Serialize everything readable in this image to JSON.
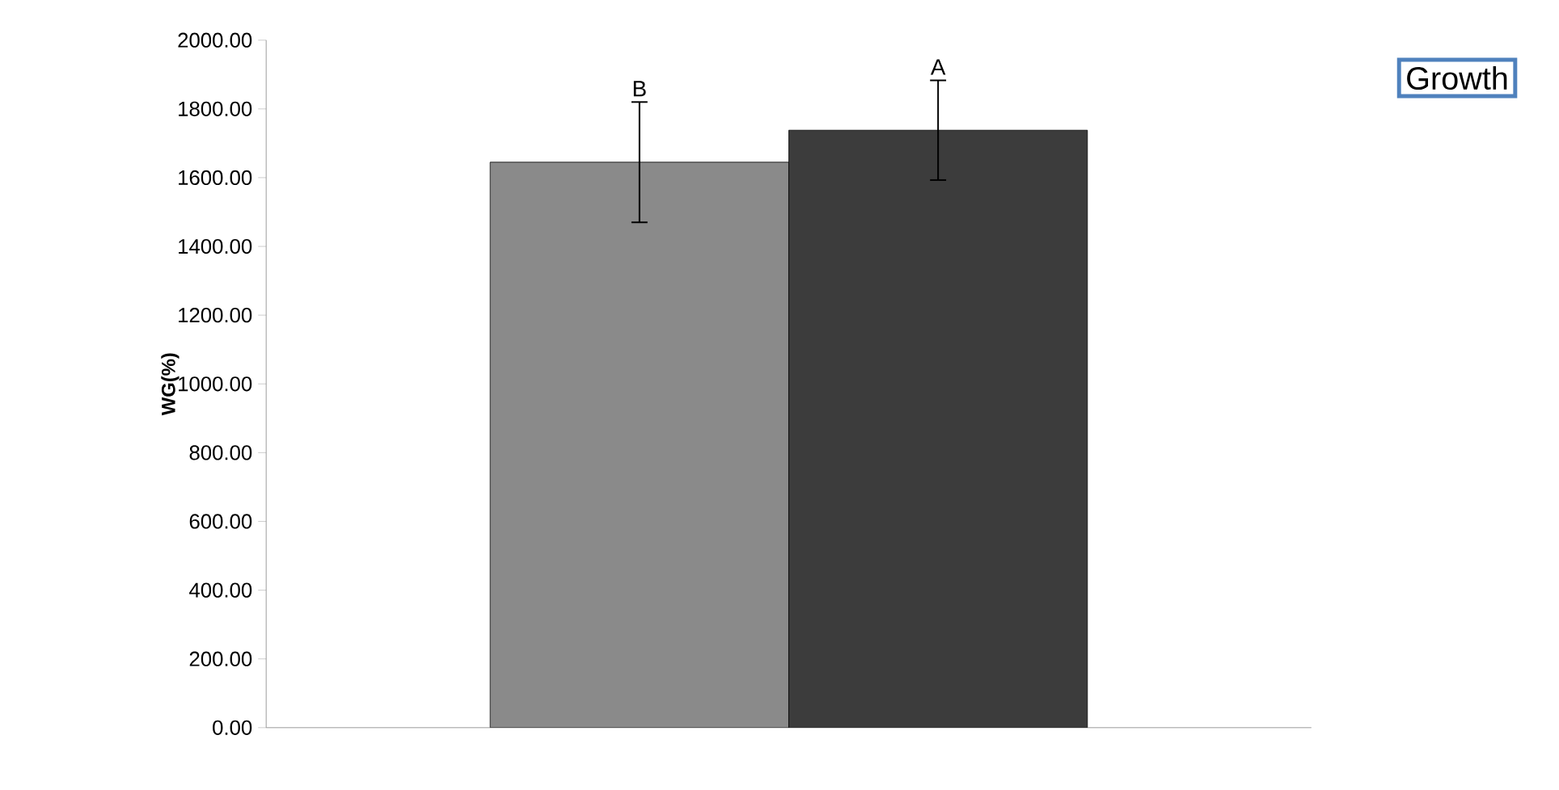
{
  "chart_data": {
    "type": "bar",
    "title": "Growth",
    "ylabel": "WG(%)",
    "categories": [
      null
    ],
    "series": [
      {
        "color": "#8a8a8a",
        "values": [
          1645
        ],
        "errors": [
          175
        ]
      },
      {
        "color": "#3c3c3c",
        "values": [
          1738
        ],
        "errors": [
          145
        ]
      }
    ],
    "annotations": [
      "B",
      "A"
    ],
    "ylim": [
      0,
      2000
    ],
    "yticks": [
      {
        "value": 0,
        "label": "0.00"
      },
      {
        "value": 200,
        "label": "200.00"
      },
      {
        "value": 400,
        "label": "400.00"
      },
      {
        "value": 600,
        "label": "600.00"
      },
      {
        "value": 800,
        "label": "800.00"
      },
      {
        "value": 1000,
        "label": "1000.00"
      },
      {
        "value": 1200,
        "label": "1200.00"
      },
      {
        "value": 1400,
        "label": "1400.00"
      },
      {
        "value": 1600,
        "label": "1600.00"
      },
      {
        "value": 1800,
        "label": "1800.00"
      },
      {
        "value": 2000,
        "label": "2000.00"
      }
    ],
    "grid": false
  }
}
